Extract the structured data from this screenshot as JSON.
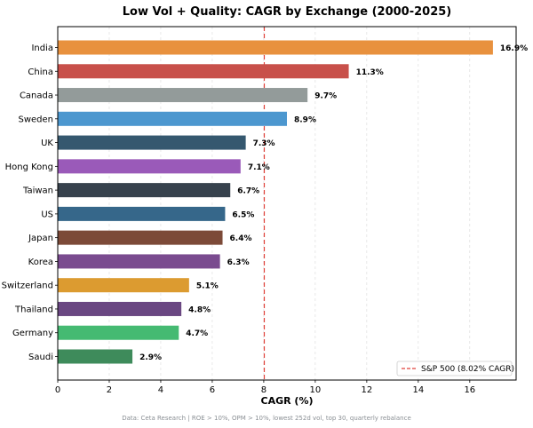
{
  "chart_data": {
    "type": "bar",
    "orientation": "horizontal",
    "title": "Low Vol + Quality: CAGR by Exchange (2000-2025)",
    "xlabel": "CAGR (%)",
    "ylabel": "",
    "xlim": [
      0,
      17.8
    ],
    "xticks": [
      0,
      2,
      4,
      6,
      8,
      10,
      12,
      14,
      16
    ],
    "grid": "vertical dashed",
    "categories": [
      "India",
      "China",
      "Canada",
      "Sweden",
      "UK",
      "Hong Kong",
      "Taiwan",
      "US",
      "Japan",
      "Korea",
      "Switzerland",
      "Thailand",
      "Germany",
      "Saudi"
    ],
    "values": [
      16.9,
      11.3,
      9.7,
      8.9,
      7.3,
      7.1,
      6.7,
      6.5,
      6.4,
      6.3,
      5.1,
      4.8,
      4.7,
      2.9
    ],
    "value_labels": [
      "16.9%",
      "11.3%",
      "9.7%",
      "8.9%",
      "7.3%",
      "7.1%",
      "6.7%",
      "6.5%",
      "6.4%",
      "6.3%",
      "5.1%",
      "4.8%",
      "4.7%",
      "2.9%"
    ],
    "colors": [
      "#e8913e",
      "#c8504a",
      "#939b9a",
      "#4c97cf",
      "#35586f",
      "#9a5ab9",
      "#37424d",
      "#36678a",
      "#7c4a38",
      "#7a4b8f",
      "#dc9b30",
      "#6a4782",
      "#45ba72",
      "#3e8b5b"
    ],
    "reference_line": {
      "value": 8.02,
      "label": "S&P 500 (8.02% CAGR)",
      "color": "#e0413a",
      "style": "dashed"
    },
    "legend_position": "bottom-right",
    "footnote": "Data: Ceta Research | ROE > 10%, OPM > 10%, lowest 252d vol, top 30, quarterly rebalance"
  }
}
